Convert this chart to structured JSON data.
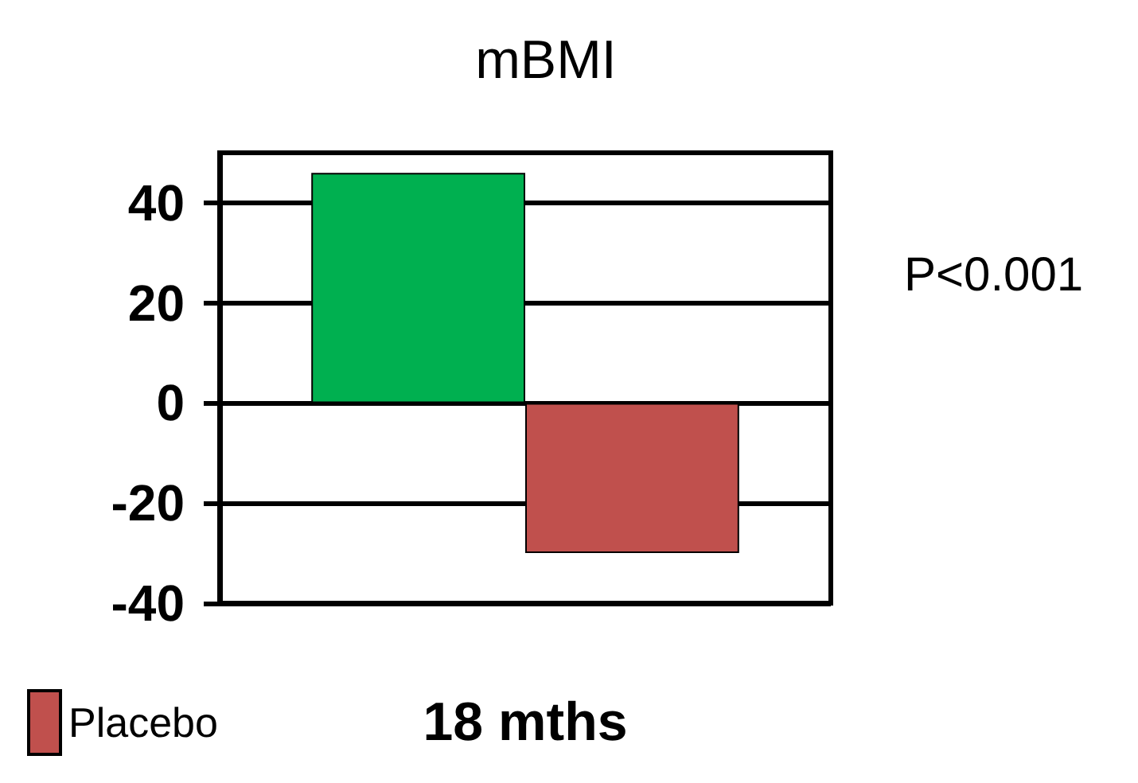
{
  "chart_data": {
    "type": "bar",
    "title": "mBMI",
    "categories": [
      "18 mths"
    ],
    "series": [
      {
        "color": "#00b050",
        "values": [
          46
        ]
      },
      {
        "name": "Placebo",
        "color": "#c0504d",
        "values": [
          -30
        ]
      }
    ],
    "ylim": [
      -40,
      50
    ],
    "yticks": [
      -40,
      -20,
      0,
      20,
      40
    ],
    "grid": "y",
    "legend": "bottom left",
    "annotations": [
      "P<0.001"
    ]
  }
}
